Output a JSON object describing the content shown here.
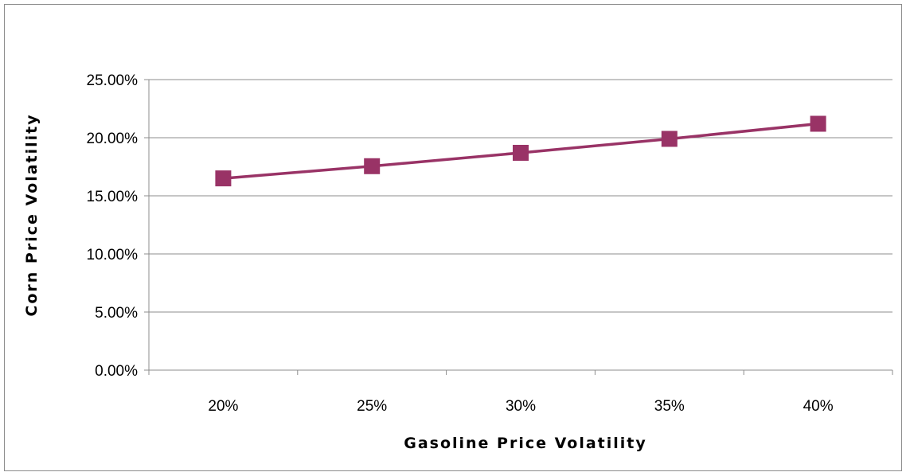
{
  "chart_data": {
    "type": "line",
    "title": "",
    "xlabel": "Gasoline Price Volatility",
    "ylabel": "Corn Price Volatility",
    "categories": [
      "20%",
      "25%",
      "30%",
      "35%",
      "40%"
    ],
    "series": [
      {
        "values": [
          0.165,
          0.1755,
          0.187,
          0.199,
          0.212
        ]
      }
    ],
    "ylim": [
      0,
      0.25
    ],
    "yticks": [
      0.0,
      0.05,
      0.1,
      0.15,
      0.2,
      0.25
    ],
    "ytick_labels": [
      "0.00%",
      "5.00%",
      "10.00%",
      "15.00%",
      "20.00%",
      "25.00%"
    ],
    "grid": true,
    "legend": "none",
    "marker": "square",
    "colors": {
      "series": "#993366",
      "grid": "#8c8c8c",
      "axis": "#8c8c8c"
    }
  }
}
